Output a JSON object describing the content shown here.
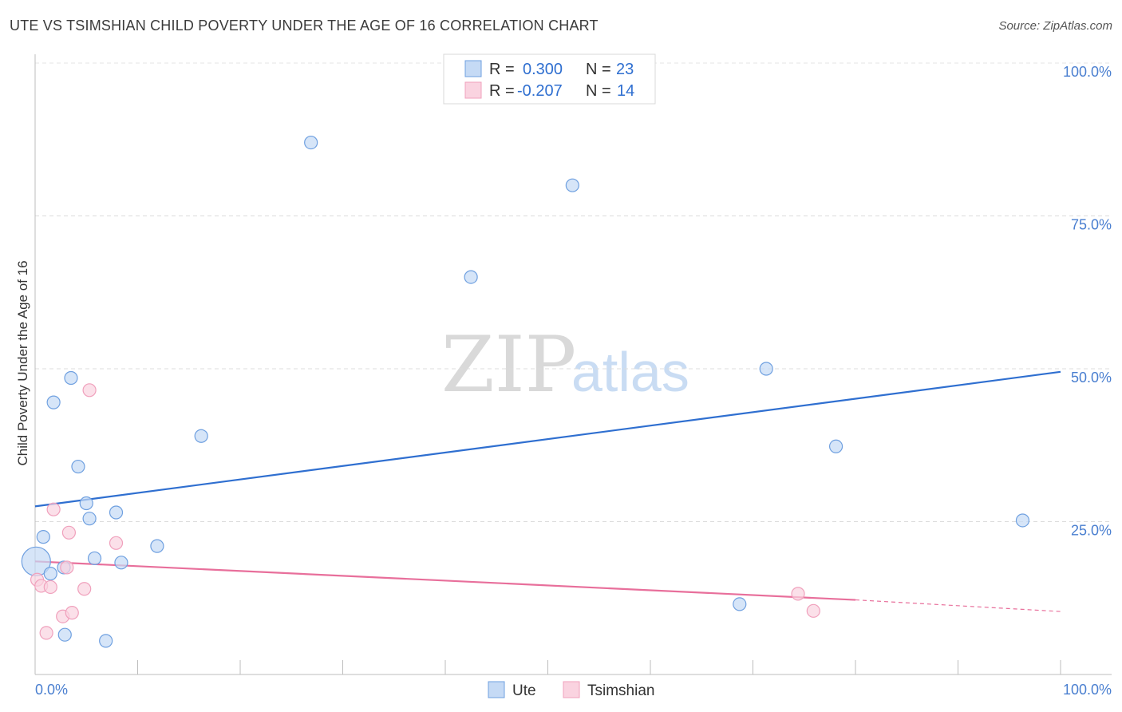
{
  "chart_data": {
    "type": "scatter",
    "title": "UTE VS TSIMSHIAN CHILD POVERTY UNDER THE AGE OF 16 CORRELATION CHART",
    "source": "Source: ZipAtlas.com",
    "ylabel": "Child Poverty Under the Age of 16",
    "xlim": [
      0,
      100
    ],
    "ylim": [
      0,
      100
    ],
    "x_tick_labels": [
      "0.0%",
      "100.0%"
    ],
    "y_ticks": [
      25,
      50,
      75,
      100
    ],
    "y_tick_labels": [
      "25.0%",
      "50.0%",
      "75.0%",
      "100.0%"
    ],
    "watermark": {
      "zip": "ZIP",
      "atlas": "atlas"
    },
    "legend": {
      "rows": [
        {
          "r_label": "R =",
          "r_value": "0.300",
          "n_label": "N =",
          "n_value": "23"
        },
        {
          "r_label": "R =",
          "r_value": "-0.207",
          "n_label": "N =",
          "n_value": "14"
        }
      ]
    },
    "series": [
      {
        "name": "Ute",
        "color": "#6fa0e0",
        "fill": "#c5daf5",
        "line_color": "#2f6fd0",
        "trend": {
          "x0": 0,
          "y0": 27.5,
          "x1": 100,
          "y1": 49.5
        },
        "points": [
          {
            "x": 0.1,
            "y": 18.5,
            "big": true
          },
          {
            "x": 0.8,
            "y": 22.5
          },
          {
            "x": 1.5,
            "y": 16.5
          },
          {
            "x": 1.8,
            "y": 44.5
          },
          {
            "x": 2.8,
            "y": 17.5
          },
          {
            "x": 2.9,
            "y": 6.5
          },
          {
            "x": 3.5,
            "y": 48.5
          },
          {
            "x": 4.2,
            "y": 34.0
          },
          {
            "x": 5.0,
            "y": 28.0
          },
          {
            "x": 5.3,
            "y": 25.5
          },
          {
            "x": 5.8,
            "y": 19.0
          },
          {
            "x": 6.9,
            "y": 5.5
          },
          {
            "x": 7.9,
            "y": 26.5
          },
          {
            "x": 8.4,
            "y": 18.3
          },
          {
            "x": 11.9,
            "y": 21.0
          },
          {
            "x": 16.2,
            "y": 39.0
          },
          {
            "x": 26.9,
            "y": 87.0
          },
          {
            "x": 42.5,
            "y": 65.0
          },
          {
            "x": 52.4,
            "y": 80.0
          },
          {
            "x": 68.7,
            "y": 11.5
          },
          {
            "x": 71.3,
            "y": 50.0
          },
          {
            "x": 78.1,
            "y": 37.3
          },
          {
            "x": 96.3,
            "y": 25.2
          }
        ]
      },
      {
        "name": "Tsimshian",
        "color": "#f0a0bc",
        "fill": "#fad3e0",
        "line_color": "#e86f9b",
        "trend": {
          "x0": 0,
          "y0": 18.5,
          "x1": 80,
          "y1": 12.2,
          "dash_x1": 100,
          "dash_y1": 10.3
        },
        "points": [
          {
            "x": 0.2,
            "y": 15.5
          },
          {
            "x": 0.6,
            "y": 14.5
          },
          {
            "x": 1.1,
            "y": 6.8
          },
          {
            "x": 1.5,
            "y": 14.3
          },
          {
            "x": 1.8,
            "y": 27.0
          },
          {
            "x": 2.7,
            "y": 9.5
          },
          {
            "x": 3.1,
            "y": 17.5
          },
          {
            "x": 3.3,
            "y": 23.2
          },
          {
            "x": 3.6,
            "y": 10.1
          },
          {
            "x": 4.8,
            "y": 14.0
          },
          {
            "x": 5.3,
            "y": 46.5
          },
          {
            "x": 7.9,
            "y": 21.5
          },
          {
            "x": 74.4,
            "y": 13.2
          },
          {
            "x": 75.9,
            "y": 10.4
          }
        ]
      }
    ]
  }
}
